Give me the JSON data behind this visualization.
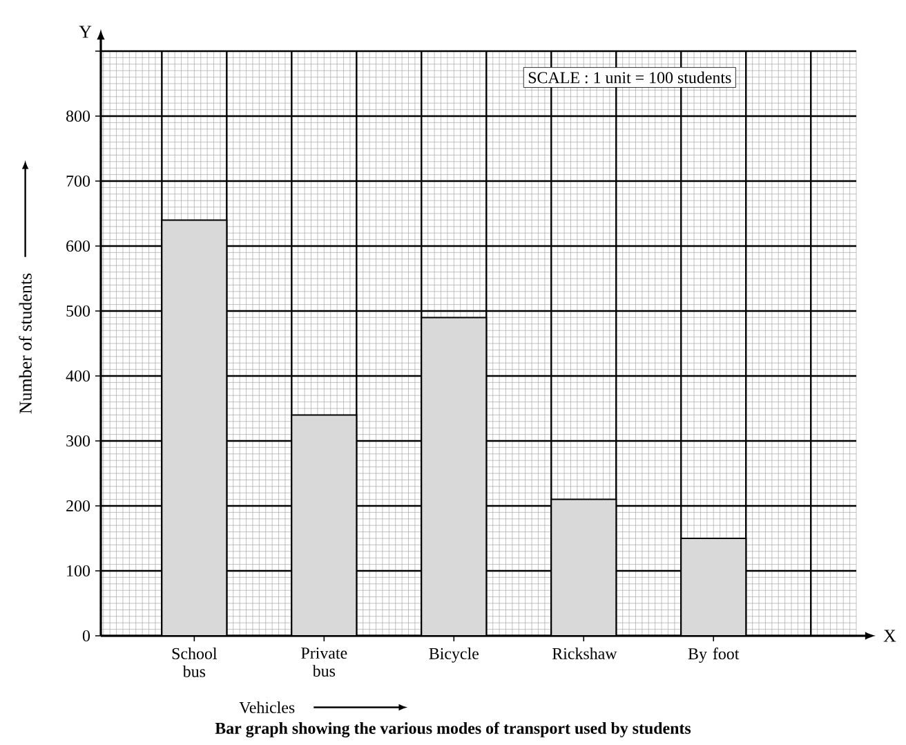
{
  "chart_data": {
    "type": "bar",
    "title": "Bar graph showing the various modes of transport used by students",
    "categories": [
      "School bus",
      "Private bus",
      "Bicycle",
      "Rickshaw",
      "By foot"
    ],
    "values": [
      640,
      340,
      490,
      210,
      150
    ],
    "color": "#d9d9d9",
    "xlabel": "Vehicles",
    "ylabel": "Number of students",
    "annotations": [
      "SCALE : 1 unit = 100 students",
      "X",
      "Y"
    ],
    "ylim": [
      0,
      900
    ],
    "yticks": [
      0,
      100,
      200,
      300,
      400,
      500,
      600,
      700,
      800,
      {
        "value": 900,
        "label": null
      }
    ],
    "grid": true
  }
}
